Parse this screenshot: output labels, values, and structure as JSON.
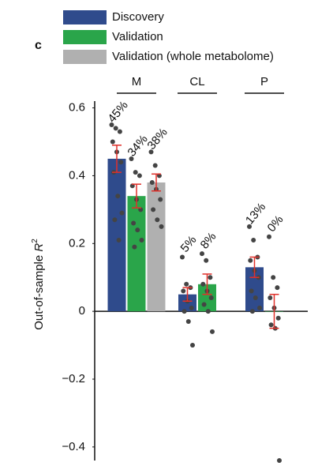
{
  "chart_data": {
    "type": "bar",
    "panel_label": "c",
    "y_label": {
      "text": "Out-of-sample ",
      "var": "R",
      "sup": "2"
    },
    "categories": [
      "M",
      "CL",
      "P"
    ],
    "ylim": [
      -0.44,
      0.62
    ],
    "yticks": [
      {
        "value": -0.4,
        "label": "−0.4"
      },
      {
        "value": -0.2,
        "label": "−0.2"
      },
      0,
      0.2,
      0.4,
      0.6
    ],
    "error_color": "#e0302a",
    "point_color": "#444444",
    "series": [
      {
        "name": "Discovery",
        "color": "#2f4b8c",
        "values": [
          0.45,
          0.05,
          0.13
        ],
        "value_labels": [
          "45%",
          "5%",
          "13%"
        ],
        "errors": [
          0.04,
          0.02,
          0.03
        ],
        "points": [
          [
            0.55,
            0.54,
            0.53,
            0.5,
            0.47,
            0.44,
            0.41,
            0.34,
            0.29,
            0.27,
            0.21
          ],
          [
            0.16,
            0.08,
            0.07,
            0.06,
            0.03,
            0.01,
            0.0,
            -0.03,
            -0.1
          ],
          [
            0.25,
            0.21,
            0.16,
            0.15,
            0.12,
            0.1,
            0.06,
            0.04,
            0.01,
            0.0
          ]
        ]
      },
      {
        "name": "Validation",
        "color": "#2aa54a",
        "values": [
          0.34,
          0.08,
          0.0
        ],
        "value_labels": [
          "34%",
          "8%",
          "0%"
        ],
        "errors": [
          0.035,
          0.03,
          0.05
        ],
        "points": [
          [
            0.45,
            0.41,
            0.4,
            0.37,
            0.33,
            0.3,
            0.26,
            0.24,
            0.21,
            0.19
          ],
          [
            0.17,
            0.15,
            0.1,
            0.08,
            0.06,
            0.04,
            0.02,
            0.0,
            -0.06
          ],
          [
            0.22,
            0.1,
            0.07,
            0.04,
            0.01,
            -0.02,
            -0.04,
            -0.05,
            -0.44
          ]
        ]
      },
      {
        "name": "Validation (whole metabolome)",
        "color": "#b0b0b0",
        "values": [
          0.38,
          null,
          null
        ],
        "value_labels": [
          "38%",
          null,
          null
        ],
        "errors": [
          0.025,
          null,
          null
        ],
        "points": [
          [
            0.47,
            0.43,
            0.4,
            0.38,
            0.36,
            0.33,
            0.3,
            0.27,
            0.25
          ],
          null,
          null
        ]
      }
    ]
  }
}
